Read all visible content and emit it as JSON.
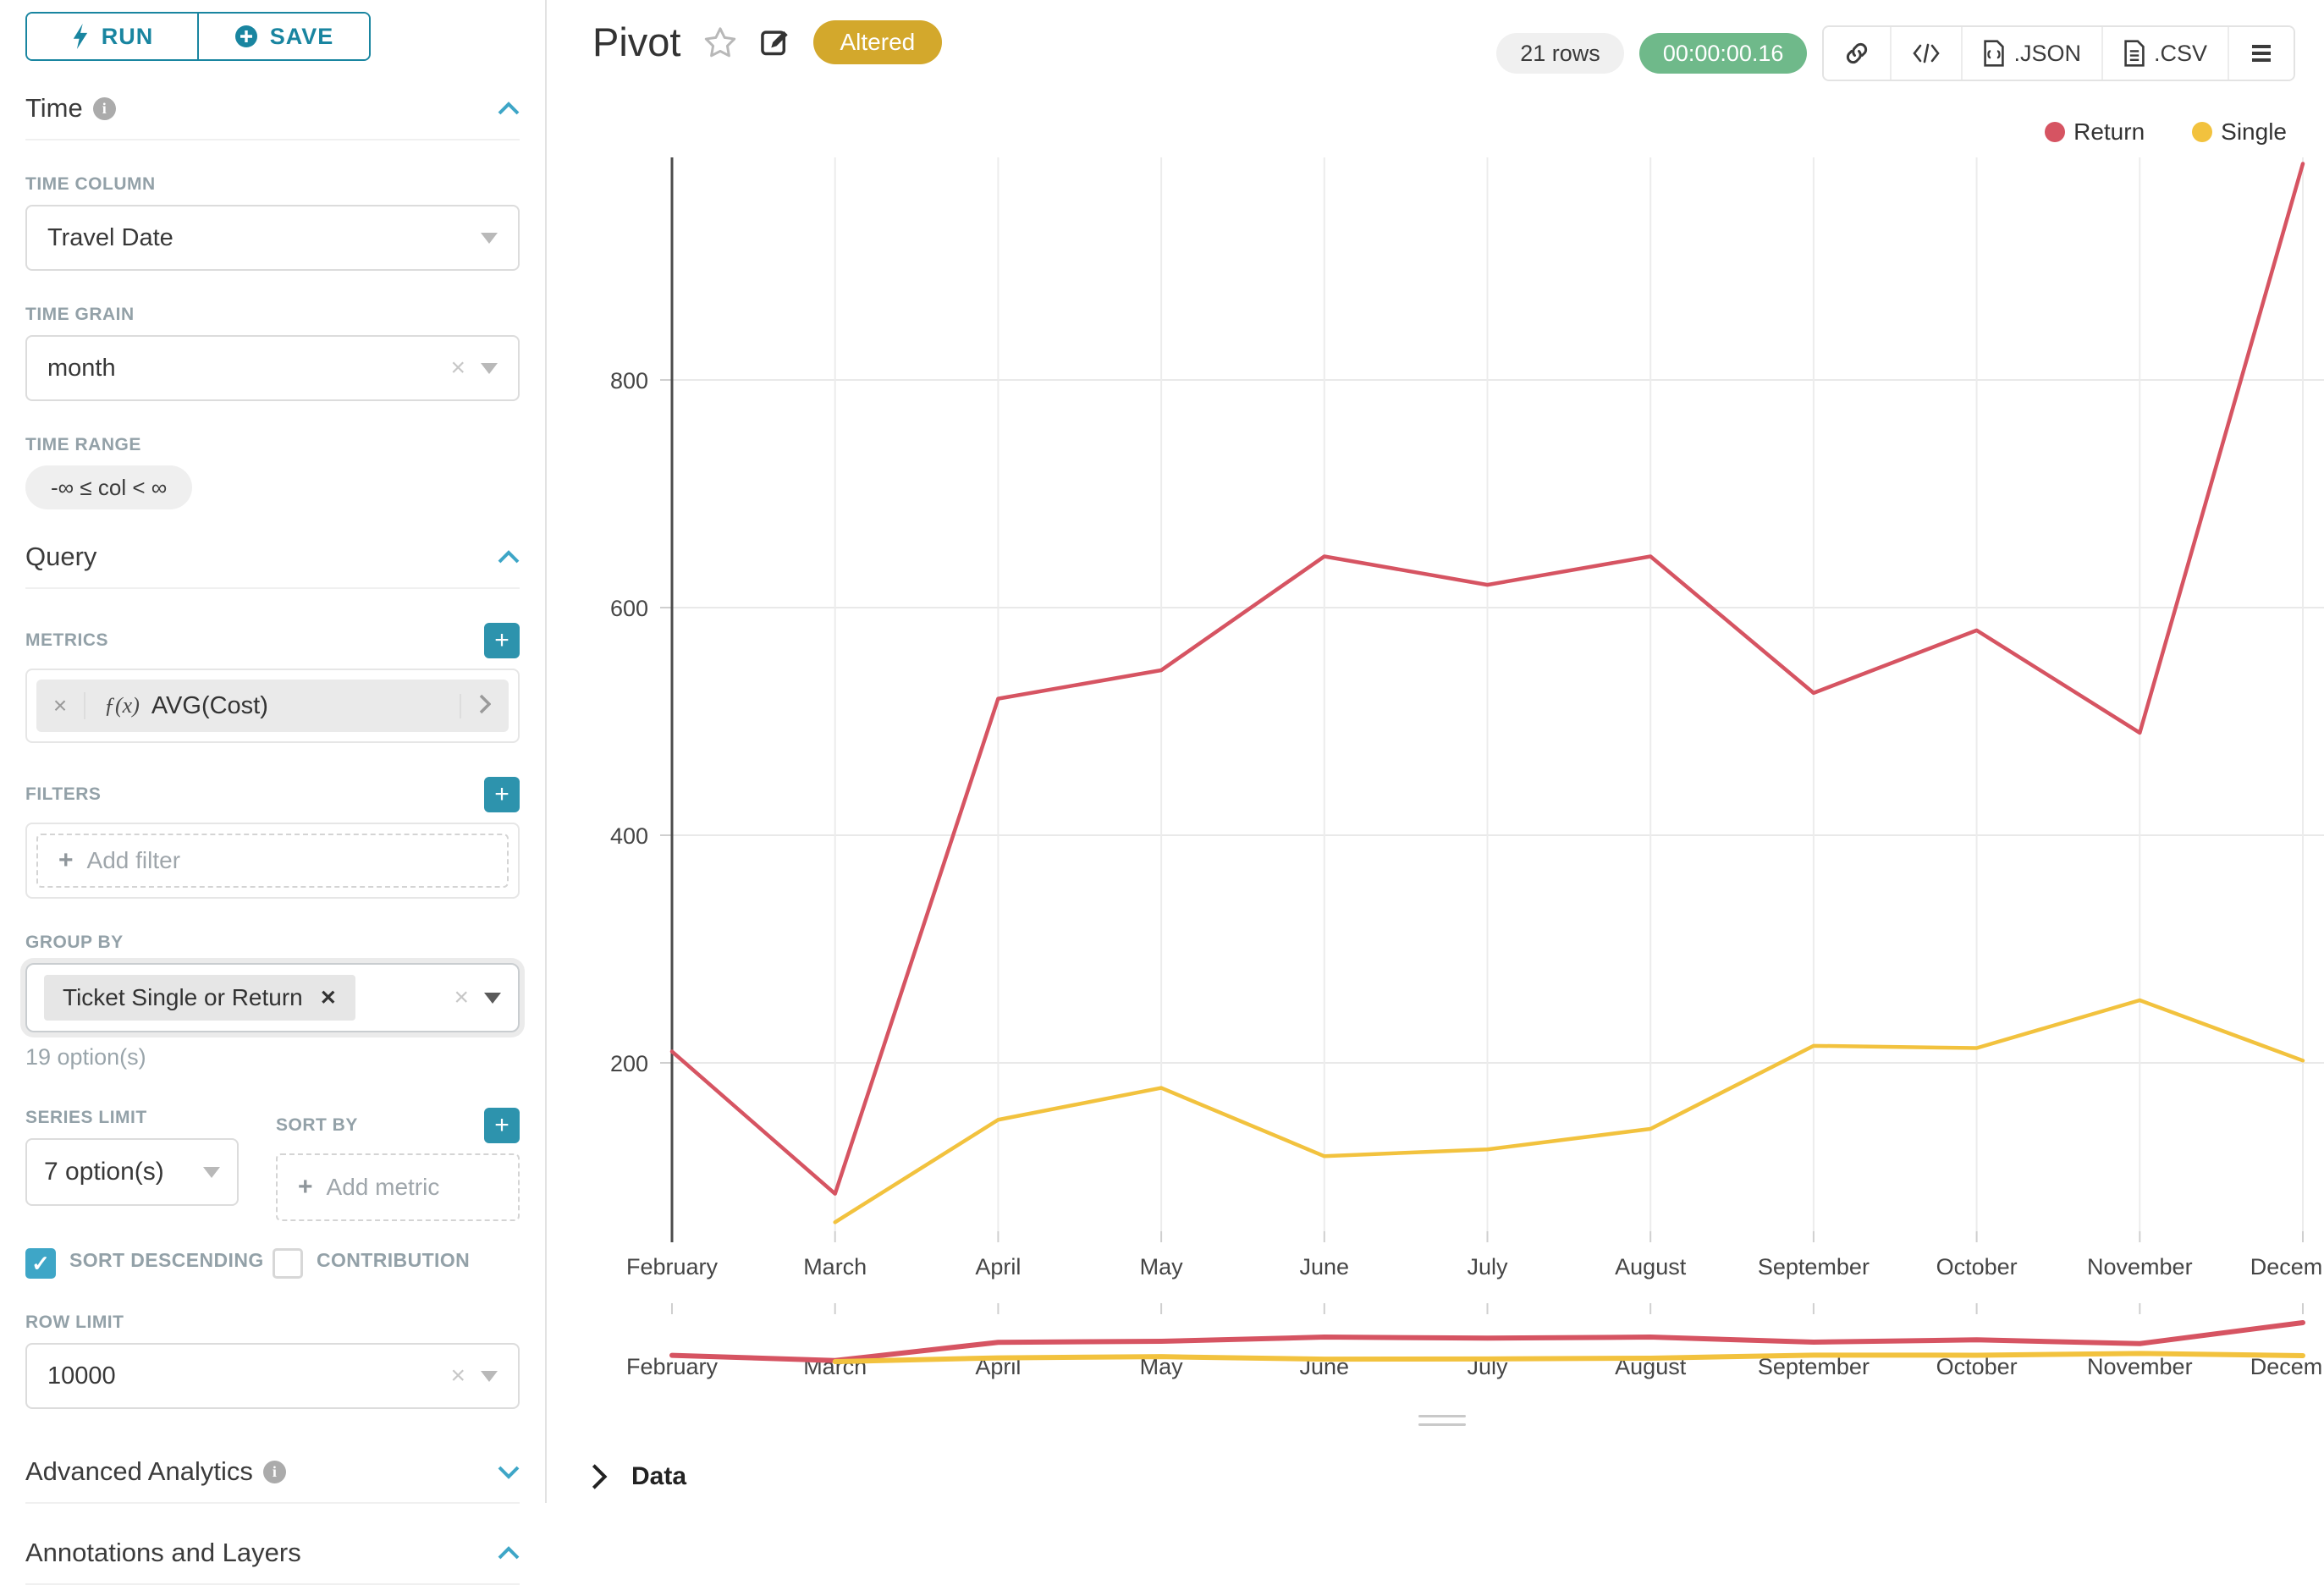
{
  "sidebar": {
    "run_button": "RUN",
    "save_button": "SAVE",
    "time_section": {
      "title": "Time",
      "time_column_label": "TIME COLUMN",
      "time_column_value": "Travel Date",
      "time_grain_label": "TIME GRAIN",
      "time_grain_value": "month",
      "time_range_label": "TIME RANGE",
      "time_range_value": "-∞ ≤ col < ∞"
    },
    "query_section": {
      "title": "Query",
      "metrics_label": "METRICS",
      "metric_fx": "ƒ(x)",
      "metric_name": "AVG(Cost)",
      "filters_label": "FILTERS",
      "add_filter_placeholder": "Add filter",
      "group_by_label": "GROUP BY",
      "group_by_value": "Ticket Single or Return",
      "group_by_hint": "19 option(s)",
      "series_limit_label": "SERIES LIMIT",
      "series_limit_value": "7 option(s)",
      "sort_by_label": "SORT BY",
      "add_metric_placeholder": "Add metric",
      "sort_descending_label": "SORT DESCENDING",
      "contribution_label": "CONTRIBUTION",
      "row_limit_label": "ROW LIMIT",
      "row_limit_value": "10000"
    },
    "advanced_section": {
      "title": "Advanced Analytics"
    },
    "annotations_section": {
      "title": "Annotations and Layers"
    }
  },
  "header": {
    "title": "Pivot",
    "altered_badge": "Altered",
    "rows_count": "21 rows",
    "duration": "00:00:00.16",
    "json_button": ".JSON",
    "csv_button": ".CSV"
  },
  "footer": {
    "data_label": "Data"
  },
  "colors": {
    "accent": "#1985a0",
    "altered_gold": "#d3a82c",
    "timer_green": "#6fb98a",
    "return_red": "#d65462",
    "single_yellow": "#f2c23e"
  },
  "chart_data": {
    "type": "line",
    "title": "Pivot",
    "x": [
      "February",
      "March",
      "April",
      "May",
      "June",
      "July",
      "August",
      "September",
      "October",
      "November",
      "December"
    ],
    "series": [
      {
        "name": "Return",
        "color": "#d65462",
        "values": [
          210,
          85,
          520,
          545,
          645,
          620,
          645,
          525,
          580,
          490,
          990
        ]
      },
      {
        "name": "Single",
        "color": "#f2c23e",
        "values": [
          null,
          60,
          150,
          178,
          118,
          124,
          142,
          215,
          213,
          255,
          202
        ]
      }
    ],
    "xlabel": "",
    "ylabel": "AVG(Cost)",
    "yticks": [
      200,
      400,
      600,
      800
    ],
    "ylim": [
      0,
      1050
    ],
    "grid": true,
    "legend_position": "top-right",
    "has_preview_strip": true
  }
}
